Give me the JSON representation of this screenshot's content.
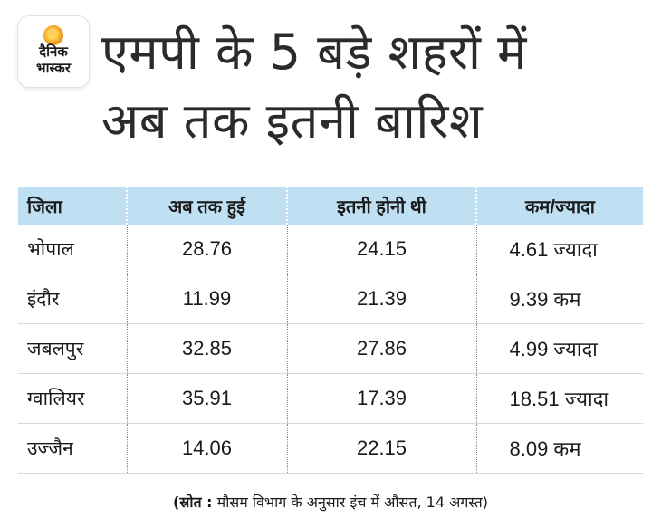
{
  "logo": {
    "line1": "दैनिक",
    "line2": "भास्कर"
  },
  "title": {
    "line1": "एमपी के 5 बड़े शहरों में",
    "line2": "अब तक इतनी बारिश"
  },
  "table": {
    "headers": [
      "जिला",
      "अब तक हुई",
      "इतनी होनी थी",
      "कम/ज्यादा"
    ],
    "rows": [
      {
        "district": "भोपाल",
        "so_far": "28.76",
        "expected": "24.15",
        "diff": "4.61 ज्यादा"
      },
      {
        "district": "इंदौर",
        "so_far": "11.99",
        "expected": "21.39",
        "diff": "9.39 कम"
      },
      {
        "district": "जबलपुर",
        "so_far": "32.85",
        "expected": "27.86",
        "diff": "4.99 ज्यादा"
      },
      {
        "district": "ग्वालियर",
        "so_far": "35.91",
        "expected": "17.39",
        "diff": "18.51 ज्यादा"
      },
      {
        "district": "उज्जैन",
        "so_far": "14.06",
        "expected": "22.15",
        "diff": "8.09 कम"
      }
    ]
  },
  "source": {
    "label": "(स्रोत :",
    "text": " मौसम विभाग के अनुसार इंच में औसत, 14 अगस्त)"
  },
  "colors": {
    "header_bg": "#bfe0f3",
    "logo_sun": "#f39a1a"
  }
}
